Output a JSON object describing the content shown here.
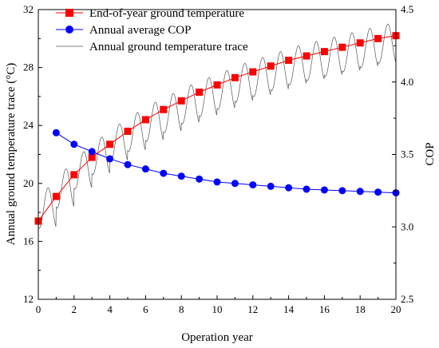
{
  "chart_data": {
    "type": "line",
    "xlabel": "Operation year",
    "ylabel_left": "Annual ground temperature trace (°C)",
    "ylabel_right": "COP",
    "xlim": [
      0,
      20
    ],
    "ylim_left": [
      12,
      32
    ],
    "ylim_right": [
      2.5,
      4.5
    ],
    "x_ticks": [
      "0",
      "2",
      "4",
      "6",
      "8",
      "10",
      "12",
      "14",
      "16",
      "18",
      "20"
    ],
    "y_left_ticks": [
      "12",
      "16",
      "20",
      "24",
      "28",
      "32"
    ],
    "y_right_ticks": [
      "2.5",
      "3.0",
      "3.5",
      "4.0",
      "4.5"
    ],
    "grid": false,
    "legend_position": "top-left",
    "series": [
      {
        "name": "End-of-year ground temperature",
        "axis": "left",
        "color": "#ff0000",
        "marker": "square",
        "x": [
          0,
          1,
          2,
          3,
          4,
          5,
          6,
          7,
          8,
          9,
          10,
          11,
          12,
          13,
          14,
          15,
          16,
          17,
          18,
          19,
          20
        ],
        "y": [
          17.4,
          19.1,
          20.6,
          21.8,
          22.7,
          23.6,
          24.4,
          25.1,
          25.7,
          26.3,
          26.8,
          27.3,
          27.7,
          28.1,
          28.5,
          28.8,
          29.1,
          29.4,
          29.7,
          30.0,
          30.2
        ]
      },
      {
        "name": "Annual average COP",
        "axis": "right",
        "color": "#0000ff",
        "marker": "circle",
        "x": [
          1,
          2,
          3,
          4,
          5,
          6,
          7,
          8,
          9,
          10,
          11,
          12,
          13,
          14,
          15,
          16,
          17,
          18,
          19,
          20
        ],
        "y": [
          3.65,
          3.57,
          3.52,
          3.47,
          3.43,
          3.4,
          3.37,
          3.35,
          3.33,
          3.31,
          3.3,
          3.29,
          3.28,
          3.27,
          3.26,
          3.255,
          3.25,
          3.245,
          3.24,
          3.235
        ]
      },
      {
        "name": "Annual ground temperature trace",
        "axis": "left",
        "color": "#555555",
        "marker": "none",
        "annual_low": [
          16.9,
          18.3,
          19.6,
          20.6,
          21.5,
          22.2,
          22.9,
          23.5,
          24.1,
          24.6,
          25.1,
          25.6,
          26.0,
          26.4,
          26.8,
          27.1,
          27.4,
          27.7,
          28.0,
          28.3
        ],
        "annual_high": [
          19.7,
          21.0,
          22.2,
          23.2,
          24.1,
          24.9,
          25.6,
          26.2,
          26.8,
          27.3,
          27.8,
          28.3,
          28.7,
          29.1,
          29.5,
          29.8,
          30.1,
          30.4,
          30.7,
          31.0
        ]
      }
    ]
  }
}
